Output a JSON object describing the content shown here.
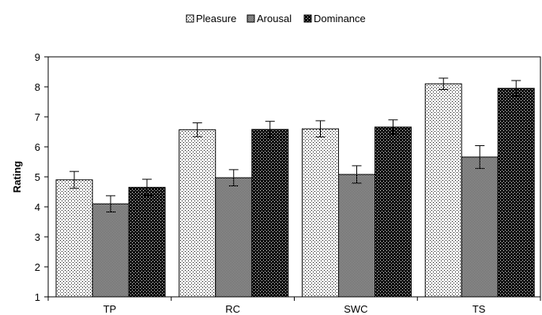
{
  "chart_data": {
    "type": "bar",
    "title": "",
    "xlabel": "",
    "ylabel": "Rating",
    "ylim": [
      1,
      9
    ],
    "yticks": [
      1,
      2,
      3,
      4,
      5,
      6,
      7,
      8,
      9
    ],
    "grid": false,
    "legend_position": "top",
    "categories": [
      "TP",
      "RC",
      "SWC",
      "TS"
    ],
    "series": [
      {
        "name": "Pleasure",
        "pattern": "light-dots",
        "values": [
          4.9,
          6.57,
          6.6,
          8.1
        ],
        "errors": [
          0.28,
          0.23,
          0.27,
          0.19
        ]
      },
      {
        "name": "Arousal",
        "pattern": "checker",
        "values": [
          4.1,
          4.97,
          5.08,
          5.66
        ],
        "errors": [
          0.27,
          0.27,
          0.29,
          0.38
        ]
      },
      {
        "name": "Dominance",
        "pattern": "dark-dots",
        "values": [
          4.65,
          6.58,
          6.66,
          7.95
        ],
        "errors": [
          0.27,
          0.27,
          0.24,
          0.26
        ]
      }
    ],
    "colors": {
      "bar_stroke": "#000000",
      "background": "#ffffff"
    }
  }
}
